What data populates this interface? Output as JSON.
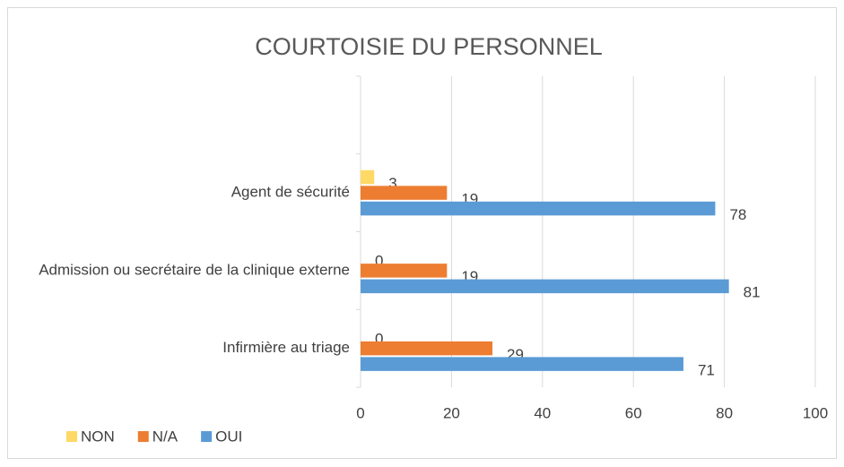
{
  "chart_data": {
    "type": "barh",
    "title": "COURTOISIE DU PERSONNEL",
    "categories": [
      "Infirmière au triage",
      "Admission ou secrétaire de la clinique externe",
      "Agent de sécurité",
      null
    ],
    "series": [
      {
        "name": "NON",
        "color": "#ffd966",
        "values": [
          0,
          0,
          3,
          null
        ]
      },
      {
        "name": "N/A",
        "color": "#ed7d31",
        "values": [
          29,
          19,
          19,
          null
        ]
      },
      {
        "name": "OUI",
        "color": "#5b9bd5",
        "values": [
          71,
          81,
          78,
          null
        ]
      }
    ],
    "xlim": [
      0,
      100
    ],
    "xticks": [
      0,
      20,
      40,
      60,
      80,
      100
    ],
    "grid": true,
    "legend": "bottom-left"
  }
}
